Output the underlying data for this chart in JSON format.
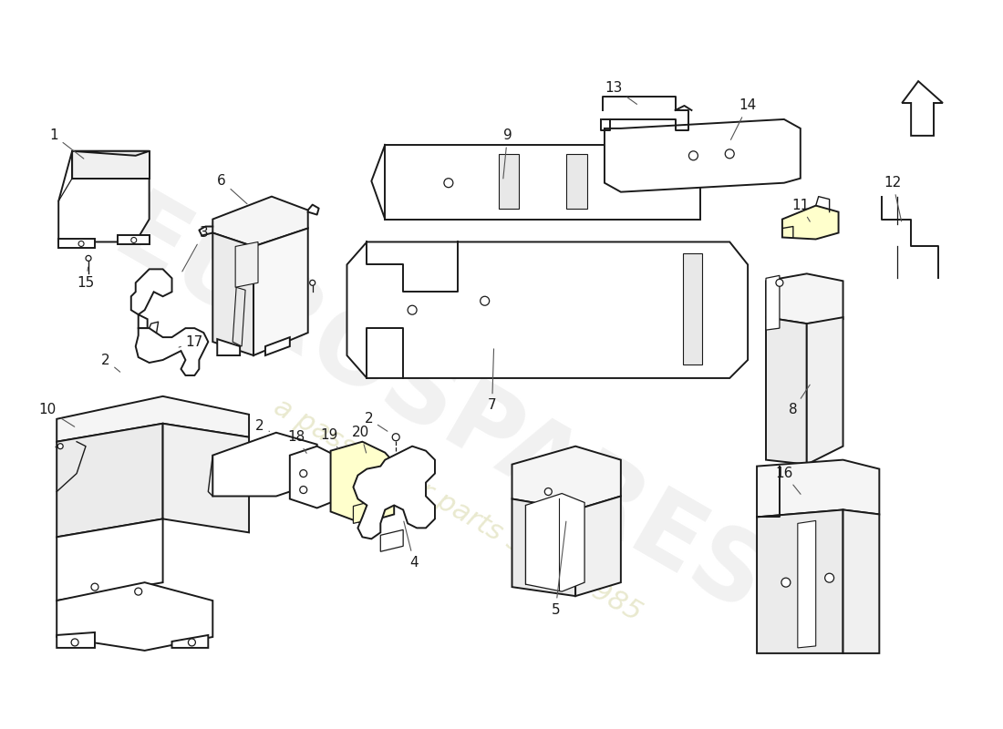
{
  "background_color": "#ffffff",
  "line_color": "#1a1a1a",
  "label_color": "#1a1a1a",
  "watermark_text1": "EUROSPARES",
  "watermark_text2": "a passion for parts since 1985",
  "highlight_color": "#ffffaa"
}
